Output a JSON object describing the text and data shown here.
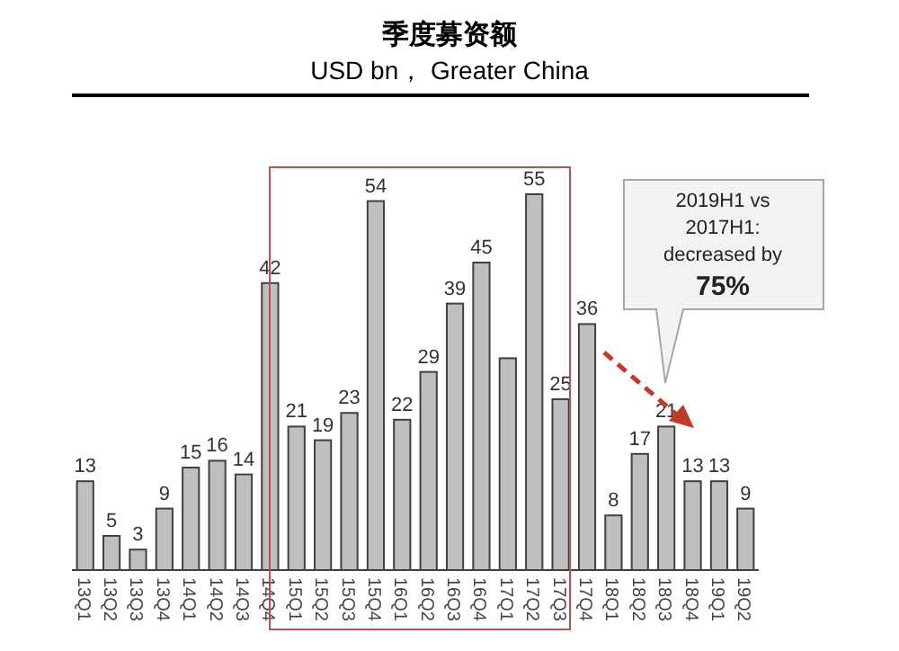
{
  "chart_data": {
    "type": "bar",
    "title": "季度募资额",
    "subtitle": "USD bn， Greater China",
    "categories": [
      "13Q1",
      "13Q2",
      "13Q3",
      "13Q4",
      "14Q1",
      "14Q2",
      "14Q3",
      "14Q4",
      "15Q1",
      "15Q2",
      "15Q3",
      "15Q4",
      "16Q1",
      "16Q2",
      "16Q3",
      "16Q4",
      "17Q1",
      "17Q2",
      "17Q3",
      "17Q4",
      "18Q1",
      "18Q2",
      "18Q3",
      "18Q4",
      "19Q1",
      "19Q2"
    ],
    "values": [
      13,
      5,
      3,
      9,
      15,
      16,
      14,
      42,
      21,
      19,
      23,
      54,
      22,
      29,
      39,
      45,
      31,
      55,
      25,
      36,
      8,
      17,
      21,
      13,
      13,
      9
    ],
    "value_labels": [
      "13",
      "5",
      "3",
      "9",
      "15",
      "16",
      "14",
      "42",
      "21",
      "19",
      "23",
      "54",
      "22",
      "29",
      "39",
      "45",
      null,
      "55",
      "25",
      "36",
      "8",
      "17",
      "21",
      "13",
      "13",
      "9"
    ],
    "color": "#bfbfbf",
    "annotations": [
      "2019H1 vs\n2017H1:\ndecreased by\n75%"
    ]
  }
}
